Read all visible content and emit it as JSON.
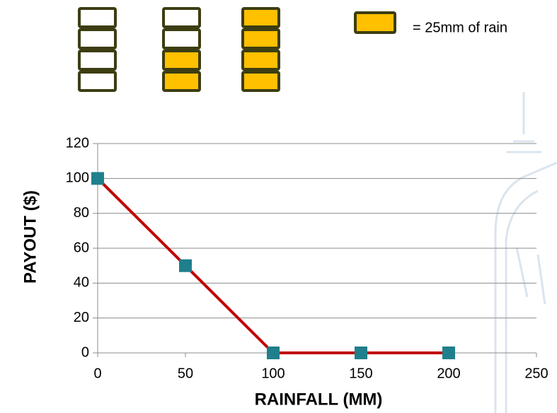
{
  "chart_data": {
    "type": "line",
    "xlabel": "RAINFALL (MM)",
    "ylabel": "PAYOUT ($)",
    "x": [
      0,
      50,
      100,
      150,
      200
    ],
    "series": [
      {
        "color": "#c00000",
        "marker_color": "#1f7f8c",
        "values": [
          100,
          50,
          0,
          0,
          0
        ]
      }
    ],
    "xlim": [
      0,
      250
    ],
    "xticks": [
      0,
      50,
      100,
      150,
      200,
      250
    ],
    "ylim": [
      0,
      120
    ],
    "yticks": [
      0,
      20,
      40,
      60,
      80,
      100,
      120
    ],
    "grid": true
  },
  "rain_icons": {
    "boxes_per_stack": 4,
    "filled_boxes": [
      0,
      2,
      4
    ],
    "fill": "#ffc000",
    "outline": "#3d3d12",
    "legend_text": "= 25mm of rain"
  }
}
